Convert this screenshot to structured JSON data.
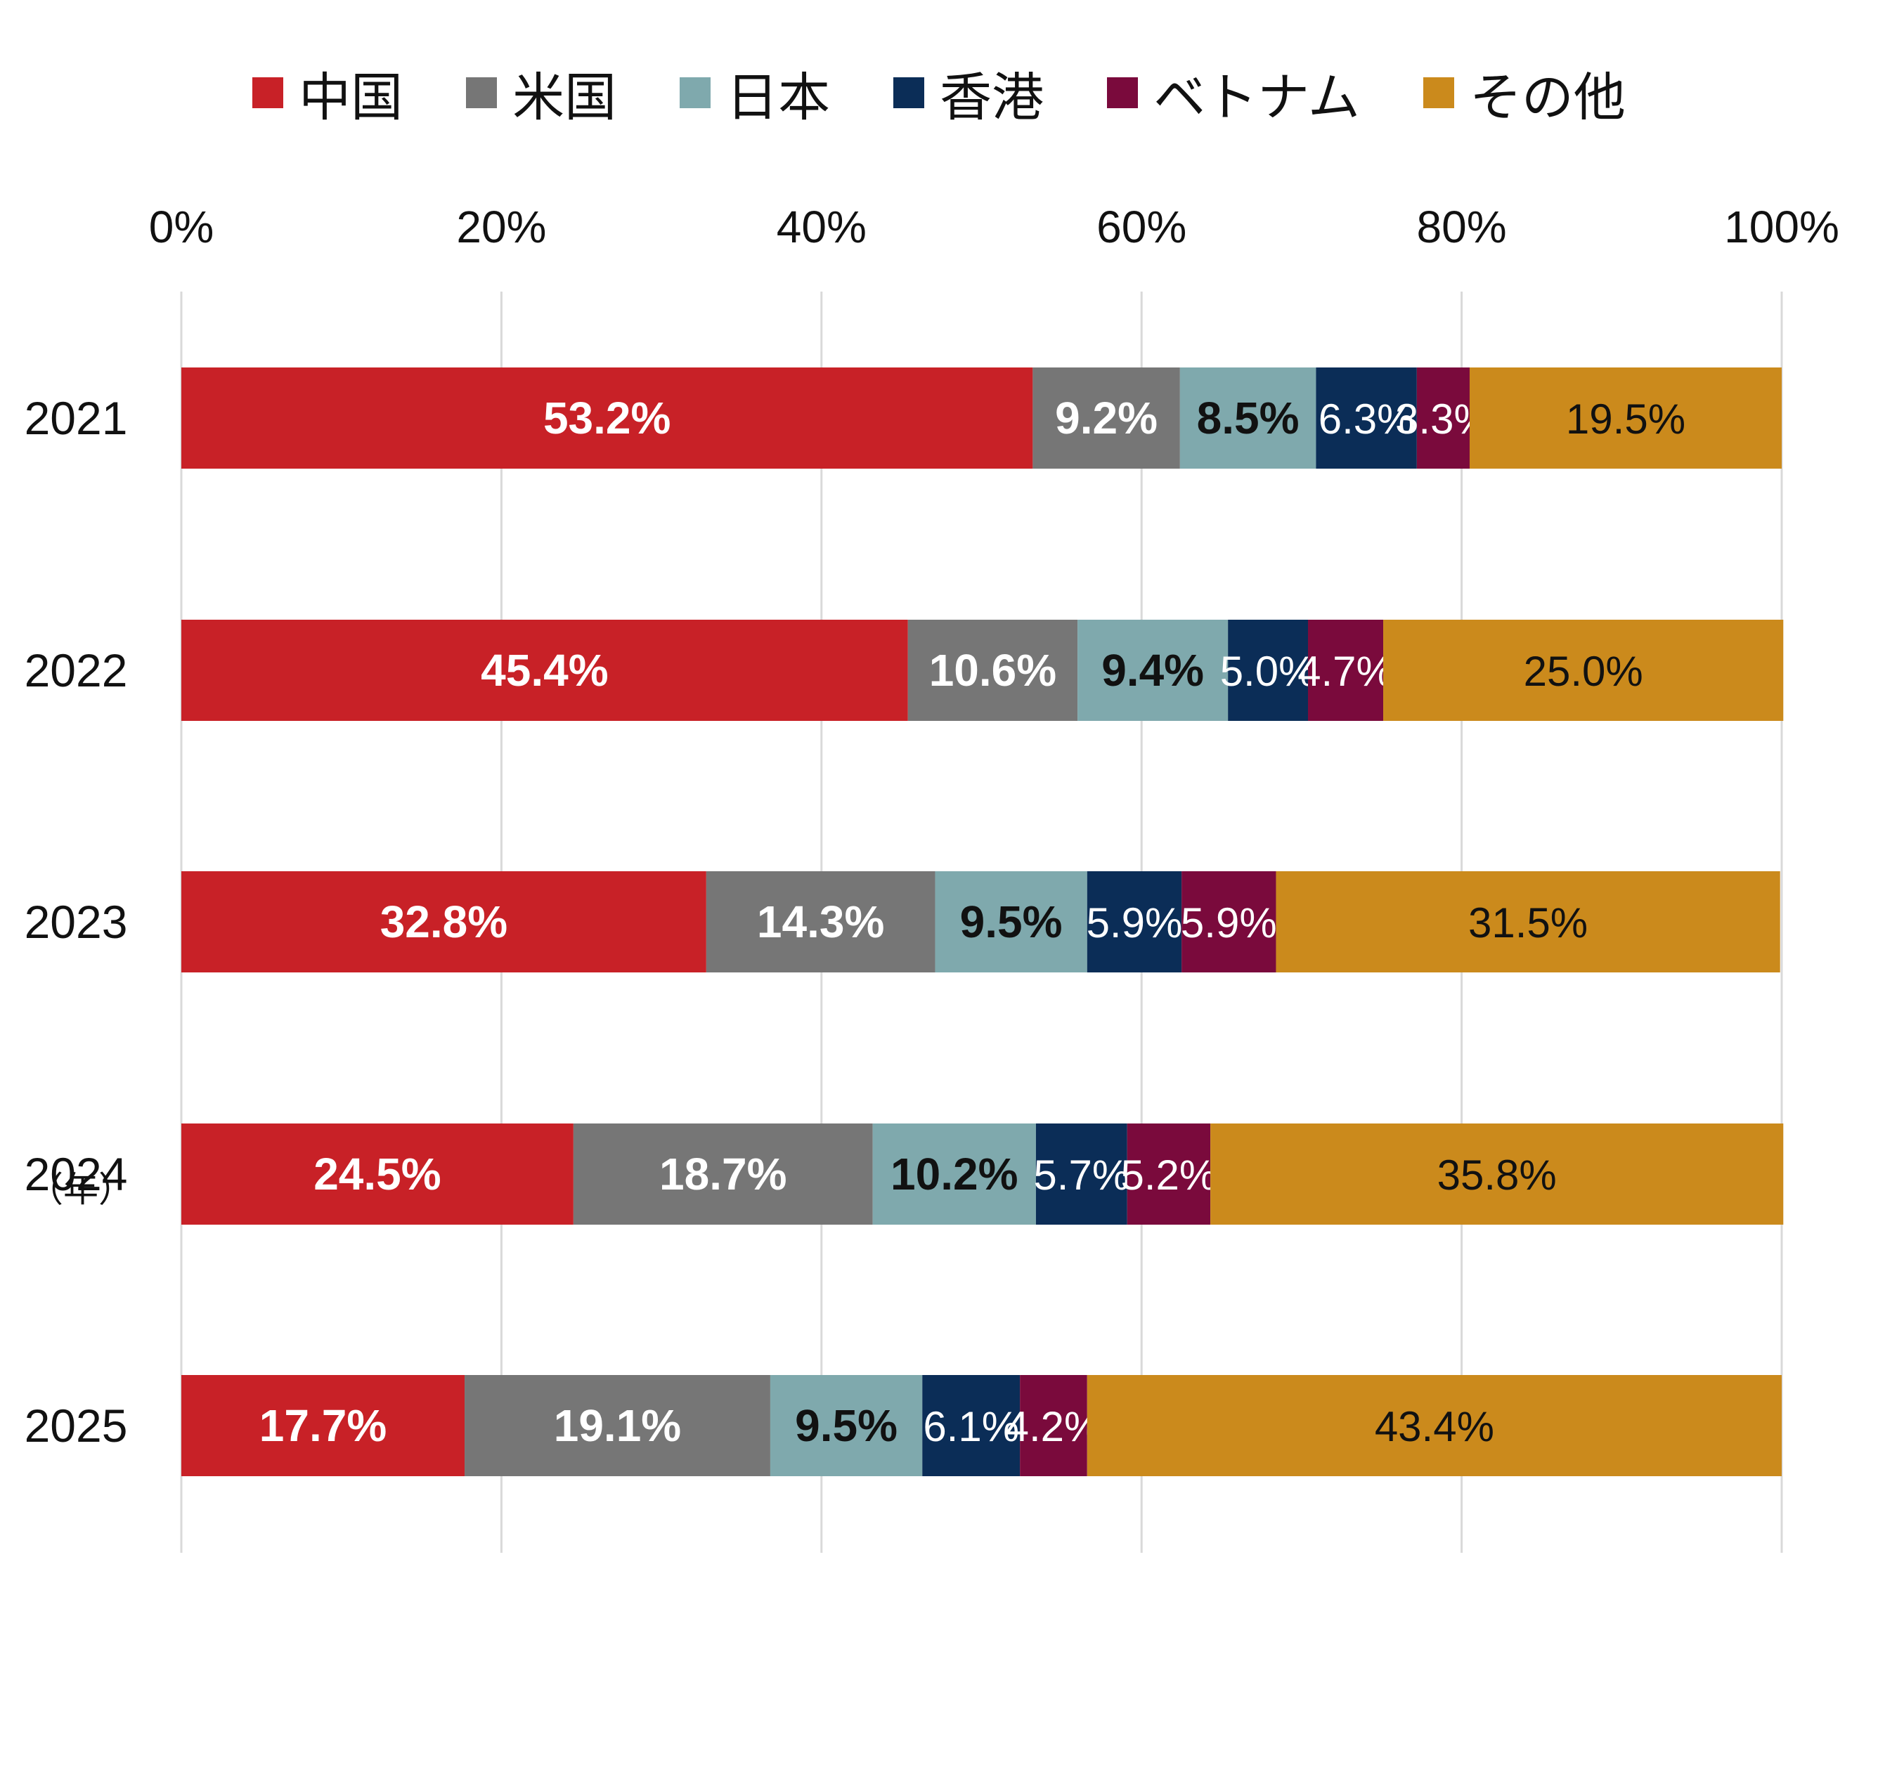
{
  "chart_data": {
    "type": "bar",
    "orientation": "horizontal",
    "stacked": true,
    "xlim": [
      0,
      100
    ],
    "x_ticks": [
      "0%",
      "20%",
      "40%",
      "60%",
      "80%",
      "100%"
    ],
    "x_tick_position": "top",
    "grid": true,
    "legend_position": "top",
    "ylabel": "（年）",
    "categories": [
      "2021",
      "2022",
      "2023",
      "2024",
      "2025"
    ],
    "series": [
      {
        "name": "中国",
        "color": "#C82127",
        "label_color": "#ffffff",
        "label_bold": true,
        "values": [
          53.2,
          45.4,
          32.8,
          24.5,
          17.7
        ],
        "labels": [
          "53.2%",
          "45.4%",
          "32.8%",
          "24.5%",
          "17.7%"
        ]
      },
      {
        "name": "米国",
        "color": "#767676",
        "label_color": "#ffffff",
        "label_bold": true,
        "values": [
          9.2,
          10.6,
          14.3,
          18.7,
          19.1
        ],
        "labels": [
          "9.2%",
          "10.6%",
          "14.3%",
          "18.7%",
          "19.1%"
        ]
      },
      {
        "name": "日本",
        "color": "#7FA9AD",
        "label_color": "#111111",
        "label_bold": true,
        "values": [
          8.5,
          9.4,
          9.5,
          10.2,
          9.5
        ],
        "labels": [
          "8.5%",
          "9.4%",
          "9.5%",
          "10.2%",
          "9.5%"
        ]
      },
      {
        "name": "香港",
        "color": "#0B2D57",
        "label_color": "#ffffff",
        "label_bold": false,
        "values": [
          6.3,
          5.0,
          5.9,
          5.7,
          6.1
        ],
        "labels": [
          "6.3%",
          "5.0%",
          "5.9%",
          "5.7%",
          "6.1%"
        ]
      },
      {
        "name": "ベトナム",
        "color": "#7A0A3C",
        "label_color": "#ffffff",
        "label_bold": false,
        "values": [
          3.3,
          4.7,
          5.9,
          5.2,
          4.2
        ],
        "labels": [
          "3.3%",
          "4.7%",
          "5.9%",
          "5.2%",
          "4.2%"
        ]
      },
      {
        "name": "その他",
        "color": "#CB8A1C",
        "label_color": "#111111",
        "label_bold": false,
        "values": [
          19.5,
          25.0,
          31.5,
          35.8,
          43.4
        ],
        "labels": [
          "19.5%",
          "25.0%",
          "31.5%",
          "35.8%",
          "43.4%"
        ]
      }
    ]
  }
}
